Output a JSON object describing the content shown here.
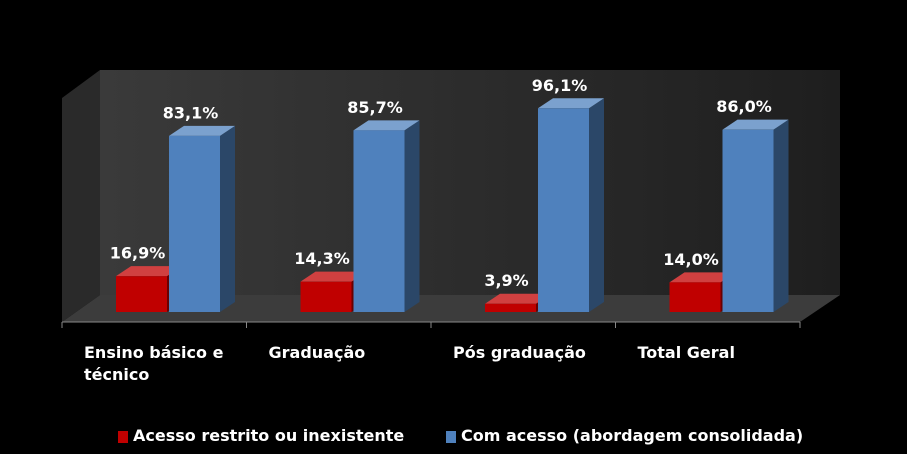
{
  "chart_data": {
    "type": "bar3d",
    "categories": [
      "Ensino básico e técnico",
      "Graduação",
      "Pós graduação",
      "Total Geral"
    ],
    "series": [
      {
        "name": "Acesso restrito ou inexistente",
        "color": "#c00000",
        "values": [
          16.9,
          14.3,
          3.9,
          14.0
        ],
        "value_labels": [
          "16,9%",
          "14,3%",
          "3,9%",
          "14,0%"
        ]
      },
      {
        "name": "Com acesso (abordagem consolidada)",
        "color": "#4f81bd",
        "values": [
          83.1,
          85.7,
          96.1,
          86.0
        ],
        "value_labels": [
          "83,1%",
          "85,7%",
          "96,1%",
          "86,0%"
        ]
      }
    ],
    "ylim": [
      0,
      100
    ],
    "legend": "bottom"
  }
}
